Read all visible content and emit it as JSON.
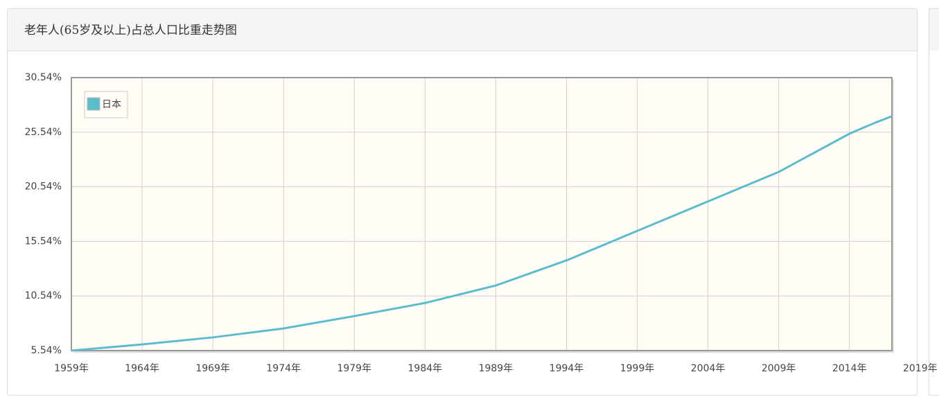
{
  "chart_data": {
    "type": "line",
    "title": "老年人(65岁及以上)占总人口比重走势图",
    "x": [
      1959,
      1964,
      1969,
      1974,
      1979,
      1984,
      1989,
      1994,
      1999,
      2004,
      2009,
      2014,
      2015,
      2016,
      2017
    ],
    "series": [
      {
        "name": "日本",
        "color": "#5bbccc",
        "values": [
          5.54,
          6.1,
          6.75,
          7.57,
          8.7,
          9.9,
          11.5,
          13.8,
          16.5,
          19.2,
          21.9,
          25.4,
          25.96,
          26.5,
          27.0
        ]
      }
    ],
    "xlim": [
      1959,
      2017
    ],
    "xticks": [
      {
        "value": 1959,
        "label": "1959年"
      },
      {
        "value": 1964,
        "label": "1964年"
      },
      {
        "value": 1969,
        "label": "1969年"
      },
      {
        "value": 1974,
        "label": "1974年"
      },
      {
        "value": 1979,
        "label": "1979年"
      },
      {
        "value": 1984,
        "label": "1984年"
      },
      {
        "value": 1989,
        "label": "1989年"
      },
      {
        "value": 1994,
        "label": "1994年"
      },
      {
        "value": 1999,
        "label": "1999年"
      },
      {
        "value": 2004,
        "label": "2004年"
      },
      {
        "value": 2009,
        "label": "2009年"
      },
      {
        "value": 2014,
        "label": "2014年"
      },
      {
        "value": 2019,
        "label": "2019年"
      }
    ],
    "ylim": [
      5.54,
      30.54
    ],
    "yticks": [
      {
        "value": 5.54,
        "label": "5.54%"
      },
      {
        "value": 10.54,
        "label": "10.54%"
      },
      {
        "value": 15.54,
        "label": "15.54%"
      },
      {
        "value": 20.54,
        "label": "20.54%"
      },
      {
        "value": 25.54,
        "label": "25.54%"
      },
      {
        "value": 30.54,
        "label": "30.54%"
      }
    ],
    "grid": true,
    "legend": "top-left"
  }
}
